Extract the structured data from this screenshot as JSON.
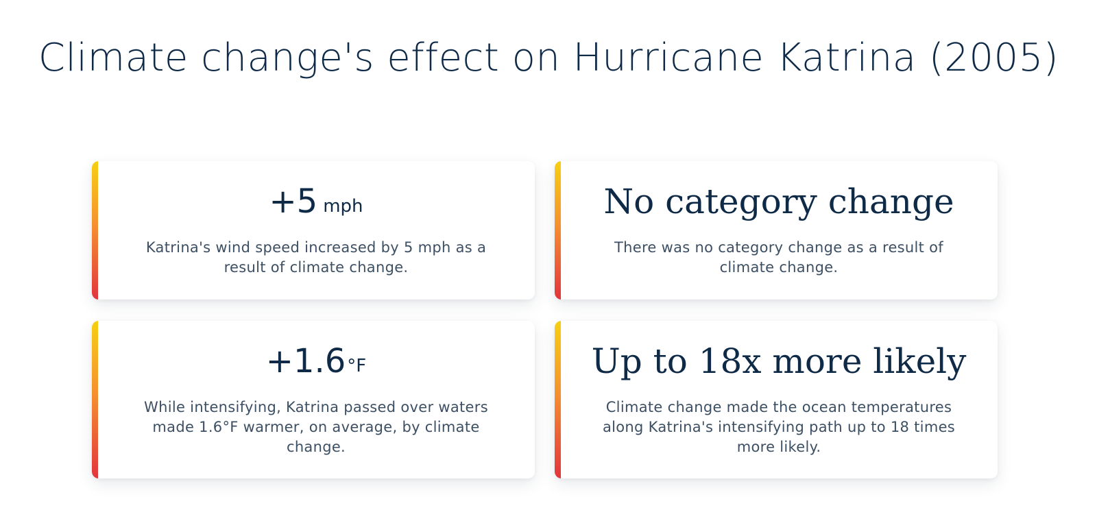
{
  "title": "Climate change's effect on Hurricane Katrina (2005)",
  "accent_gradient": [
    "#f7cf12",
    "#f5922f",
    "#e2343d"
  ],
  "cards": [
    {
      "value": "+5",
      "unit": "mph",
      "description": "Katrina's wind speed increased by 5 mph as a result of climate change."
    },
    {
      "headline": "No category change",
      "description": "There was no category change as a result of climate change."
    },
    {
      "value": "+1.6",
      "unit": "°F",
      "description": "While intensifying, Katrina passed over waters made 1.6°F warmer, on average, by climate change."
    },
    {
      "headline": "Up to 18x more likely",
      "description": "Climate change made the ocean temperatures along Katrina's intensifying path up to 18 times more likely."
    }
  ]
}
